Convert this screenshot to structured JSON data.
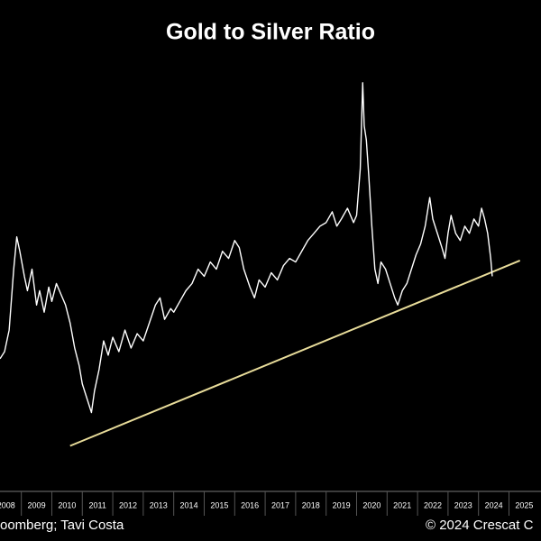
{
  "chart_data": {
    "type": "line",
    "title": "Gold to Silver Ratio",
    "source": "oomberg; Tavi Costa",
    "copyright": "© 2024 Crescat C",
    "x": [
      2008.3,
      2008.45,
      2008.6,
      2008.75,
      2008.85,
      2008.95,
      2009.1,
      2009.2,
      2009.35,
      2009.5,
      2009.6,
      2009.75,
      2009.9,
      2010.0,
      2010.15,
      2010.3,
      2010.45,
      2010.6,
      2010.75,
      2010.9,
      2011.0,
      2011.15,
      2011.3,
      2011.4,
      2011.55,
      2011.7,
      2011.85,
      2012.0,
      2012.2,
      2012.4,
      2012.6,
      2012.8,
      2013.0,
      2013.2,
      2013.4,
      2013.55,
      2013.7,
      2013.9,
      2014.0,
      2014.2,
      2014.4,
      2014.6,
      2014.8,
      2015.0,
      2015.2,
      2015.4,
      2015.6,
      2015.8,
      2016.0,
      2016.15,
      2016.3,
      2016.5,
      2016.65,
      2016.8,
      2017.0,
      2017.2,
      2017.4,
      2017.6,
      2017.8,
      2018.0,
      2018.2,
      2018.4,
      2018.6,
      2018.8,
      2019.0,
      2019.2,
      2019.35,
      2019.5,
      2019.7,
      2019.9,
      2020.0,
      2020.12,
      2020.2,
      2020.25,
      2020.32,
      2020.4,
      2020.5,
      2020.6,
      2020.7,
      2020.8,
      2020.95,
      2021.1,
      2021.25,
      2021.35,
      2021.5,
      2021.65,
      2021.8,
      2021.95,
      2022.1,
      2022.25,
      2022.4,
      2022.5,
      2022.65,
      2022.8,
      2022.9,
      2023.0,
      2023.1,
      2023.25,
      2023.4,
      2023.55,
      2023.7,
      2023.85,
      2024.0,
      2024.1,
      2024.2,
      2024.3,
      2024.4,
      2024.45
    ],
    "series": [
      {
        "color": "#ffffff",
        "values": [
          47,
          49,
          55,
          72,
          81,
          77,
          70,
          66,
          72,
          62,
          66,
          60,
          67,
          63,
          68,
          65,
          62,
          57,
          50,
          45,
          40,
          36,
          32,
          38,
          44,
          52,
          48,
          53,
          49,
          55,
          50,
          54,
          52,
          57,
          62,
          64,
          58,
          61,
          60,
          63,
          66,
          68,
          72,
          70,
          74,
          72,
          77,
          75,
          80,
          78,
          72,
          67,
          64,
          69,
          67,
          71,
          69,
          73,
          75,
          74,
          77,
          80,
          82,
          84,
          85,
          88,
          84,
          86,
          89,
          85,
          87,
          100,
          124,
          112,
          108,
          98,
          84,
          72,
          68,
          74,
          72,
          68,
          64,
          62,
          66,
          68,
          72,
          76,
          79,
          84,
          92,
          86,
          82,
          78,
          75,
          82,
          87,
          82,
          80,
          84,
          82,
          86,
          84,
          89,
          86,
          82,
          75,
          70
        ]
      }
    ],
    "trendline": {
      "color": "#e8dc9a",
      "x": [
        2010.6,
        2025.36
      ],
      "values": [
        22.7,
        74.4
      ]
    },
    "xlim": [
      2008.3,
      2026.05
    ],
    "ylim": [
      10,
      132
    ],
    "xticks": [
      {
        "value": 2008.5,
        "label": "2008"
      },
      {
        "value": 2009.5,
        "label": "2009"
      },
      {
        "value": 2010.5,
        "label": "2010"
      },
      {
        "value": 2011.5,
        "label": "2011"
      },
      {
        "value": 2012.5,
        "label": "2012"
      },
      {
        "value": 2013.5,
        "label": "2013"
      },
      {
        "value": 2014.5,
        "label": "2014"
      },
      {
        "value": 2015.5,
        "label": "2015"
      },
      {
        "value": 2016.5,
        "label": "2016"
      },
      {
        "value": 2017.5,
        "label": "2017"
      },
      {
        "value": 2018.5,
        "label": "2018"
      },
      {
        "value": 2019.5,
        "label": "2019"
      },
      {
        "value": 2020.5,
        "label": "2020"
      },
      {
        "value": 2021.5,
        "label": "2021"
      },
      {
        "value": 2022.5,
        "label": "2022"
      },
      {
        "value": 2023.5,
        "label": "2023"
      },
      {
        "value": 2024.5,
        "label": "2024"
      },
      {
        "value": 2025.5,
        "label": "2025"
      }
    ]
  }
}
